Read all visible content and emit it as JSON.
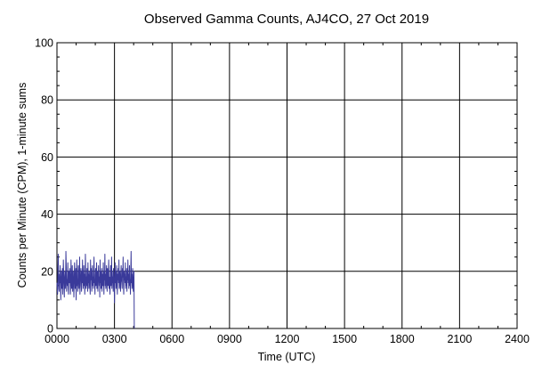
{
  "chart_data": {
    "type": "line",
    "title": "Observed Gamma Counts, AJ4CO, 27 Oct 2019",
    "xlabel": "Time (UTC)",
    "ylabel": "Counts per Minute (CPM), 1-minute sums",
    "xlim": [
      0,
      1440
    ],
    "ylim": [
      0,
      100
    ],
    "x_ticks": [
      {
        "value": 0,
        "label": "0000"
      },
      {
        "value": 180,
        "label": "0300"
      },
      {
        "value": 360,
        "label": "0600"
      },
      {
        "value": 540,
        "label": "0900"
      },
      {
        "value": 720,
        "label": "1200"
      },
      {
        "value": 900,
        "label": "1500"
      },
      {
        "value": 1080,
        "label": "1800"
      },
      {
        "value": 1260,
        "label": "2100"
      },
      {
        "value": 1440,
        "label": "2400"
      }
    ],
    "y_ticks": [
      {
        "value": 0,
        "label": "0"
      },
      {
        "value": 20,
        "label": "20"
      },
      {
        "value": 40,
        "label": "40"
      },
      {
        "value": 60,
        "label": "60"
      },
      {
        "value": 80,
        "label": "80"
      },
      {
        "value": 100,
        "label": "100"
      }
    ],
    "grid": true,
    "series": [
      {
        "color": "#3a3a9a",
        "x_start": 0,
        "x_step": 1,
        "values": [
          16,
          14,
          12,
          21,
          26,
          18,
          14,
          13,
          19,
          16,
          22,
          15,
          10,
          17,
          20,
          14,
          18,
          21,
          12,
          16,
          24,
          19,
          15,
          11,
          18,
          20,
          14,
          16,
          27,
          22,
          13,
          17,
          15,
          19,
          23,
          14,
          12,
          20,
          17,
          16,
          21,
          18,
          12,
          15,
          24,
          19,
          14,
          16,
          22,
          13,
          18,
          20,
          15,
          11,
          17,
          23,
          19,
          14,
          16,
          21,
          10,
          18,
          24,
          15,
          17,
          13,
          20,
          22,
          16,
          14,
          19,
          25,
          12,
          17,
          18,
          21,
          15,
          13,
          20,
          16,
          24,
          18,
          14,
          17,
          22,
          15,
          19,
          12,
          16,
          26,
          20,
          14,
          18,
          15,
          21,
          17,
          13,
          23,
          16,
          19,
          14,
          20,
          18,
          15,
          12,
          24,
          17,
          21,
          16,
          13,
          19,
          22,
          15,
          18,
          14,
          20,
          25,
          16,
          17,
          12,
          19,
          21,
          15,
          18,
          23,
          14,
          16,
          20,
          13,
          17,
          22,
          19,
          15,
          18,
          11,
          24,
          16,
          20,
          14,
          17,
          21,
          13,
          19,
          18,
          15,
          23,
          16,
          12,
          20,
          17,
          26,
          15,
          19,
          14,
          18,
          22,
          16,
          13,
          21,
          17,
          15,
          20,
          24,
          14,
          18,
          16,
          12,
          19,
          22,
          15,
          17,
          25,
          14,
          20,
          16,
          18,
          13,
          21,
          19,
          15,
          9,
          17,
          23,
          16,
          20,
          14,
          18,
          22,
          15,
          12,
          19,
          17,
          21,
          16,
          24,
          14,
          18,
          20,
          15,
          13,
          19,
          22,
          17,
          16,
          14,
          21,
          18,
          25,
          15,
          12,
          20,
          17,
          19,
          16,
          23,
          14,
          18,
          15,
          21,
          13,
          20,
          17,
          24,
          16,
          19,
          14,
          18,
          22,
          15,
          17,
          12,
          20,
          27,
          16,
          19,
          14,
          18,
          21,
          15,
          13,
          17,
          20,
          0
        ]
      }
    ]
  }
}
